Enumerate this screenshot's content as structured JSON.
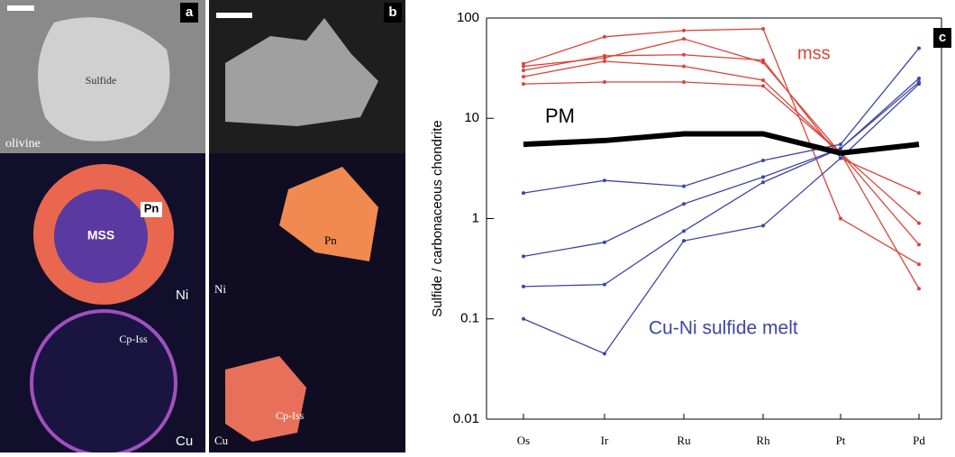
{
  "panels": [
    {
      "label": "a",
      "texts": [
        "Sulfide",
        "olivine",
        "MSS",
        "Pn",
        "Ni",
        "Cp-Iss",
        "Cu"
      ]
    },
    {
      "label": "b",
      "texts": [
        "Pn",
        "Ni",
        "Cp-Iss",
        "Cu"
      ]
    }
  ],
  "chart_data": {
    "type": "line",
    "panel_label": "c",
    "y_label": "Sulfide / carbonaceous chondrite",
    "categories": [
      "Os",
      "Ir",
      "Ru",
      "Rh",
      "Pt",
      "Pd"
    ],
    "log_scale": true,
    "ylim": [
      0.01,
      100
    ],
    "yticks": [
      0.01,
      0.1,
      1,
      10,
      100
    ],
    "series": [
      {
        "color": "#d9453a",
        "values": [
          35,
          65,
          75,
          78,
          1.0,
          0.35
        ]
      },
      {
        "color": "#d9453a",
        "values": [
          33,
          40,
          62,
          36,
          4.5,
          0.2
        ]
      },
      {
        "color": "#d9453a",
        "values": [
          30,
          42,
          43,
          38,
          4.0,
          1.8
        ]
      },
      {
        "color": "#d9453a",
        "values": [
          26,
          37,
          33,
          24,
          4.5,
          0.9
        ]
      },
      {
        "color": "#d9453a",
        "values": [
          22,
          23,
          23,
          21,
          4.5,
          0.55
        ]
      },
      {
        "color": "#3d45a8",
        "values": [
          1.8,
          2.4,
          2.1,
          3.8,
          5.5,
          50
        ]
      },
      {
        "color": "#3d45a8",
        "values": [
          0.42,
          0.58,
          1.4,
          2.6,
          5,
          25
        ]
      },
      {
        "color": "#3d45a8",
        "values": [
          0.21,
          0.22,
          0.75,
          2.3,
          5,
          23
        ]
      },
      {
        "color": "#3d45a8",
        "values": [
          0.1,
          0.045,
          0.6,
          0.85,
          4,
          22
        ]
      },
      {
        "color": "#000000",
        "values": [
          5.5,
          6,
          7,
          7,
          4.5,
          5.5
        ],
        "thick": true
      }
    ],
    "annotations": [
      {
        "text": "mss",
        "color": "#d9453a"
      },
      {
        "text": "PM",
        "color": "#000000"
      },
      {
        "text": "Cu-Ni sulfide melt",
        "color": "#3d45a8"
      }
    ]
  }
}
